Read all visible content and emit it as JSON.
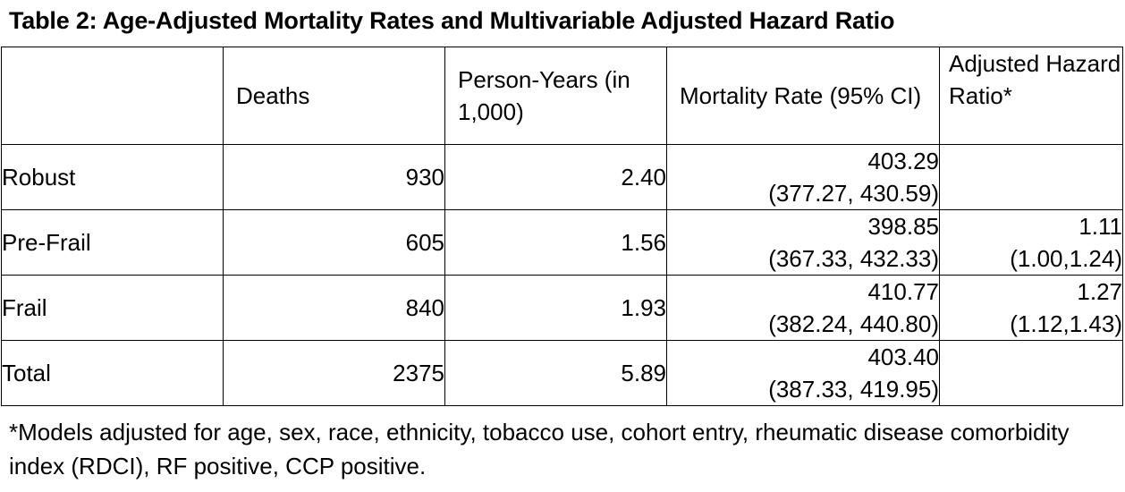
{
  "title": "Table 2: Age-Adjusted Mortality Rates and Multivariable Adjusted Hazard Ratio",
  "table": {
    "headers": [
      "",
      "Deaths",
      "Person-Years (in 1,000)",
      "Mortality Rate (95% CI)",
      "Adjusted Hazard Ratio*"
    ],
    "rows": [
      {
        "label": "Robust",
        "deaths": "930",
        "person_years": "2.40",
        "rate": "403.29",
        "rate_ci": "(377.27, 430.59)",
        "hr": "",
        "hr_ci": ""
      },
      {
        "label": "Pre-Frail",
        "deaths": "605",
        "person_years": "1.56",
        "rate": "398.85",
        "rate_ci": "(367.33, 432.33)",
        "hr": "1.11",
        "hr_ci": "(1.00,1.24)"
      },
      {
        "label": "Frail",
        "deaths": "840",
        "person_years": "1.93",
        "rate": "410.77",
        "rate_ci": "(382.24, 440.80)",
        "hr": "1.27",
        "hr_ci": "(1.12,1.43)"
      },
      {
        "label": "Total",
        "deaths": "2375",
        "person_years": "5.89",
        "rate": "403.40",
        "rate_ci": "(387.33, 419.95)",
        "hr": "",
        "hr_ci": ""
      }
    ]
  },
  "footnote": "*Models adjusted for age, sex, race, ethnicity, tobacco use, cohort entry, rheumatic disease comorbidity index (RDCI), RF positive, CCP positive."
}
